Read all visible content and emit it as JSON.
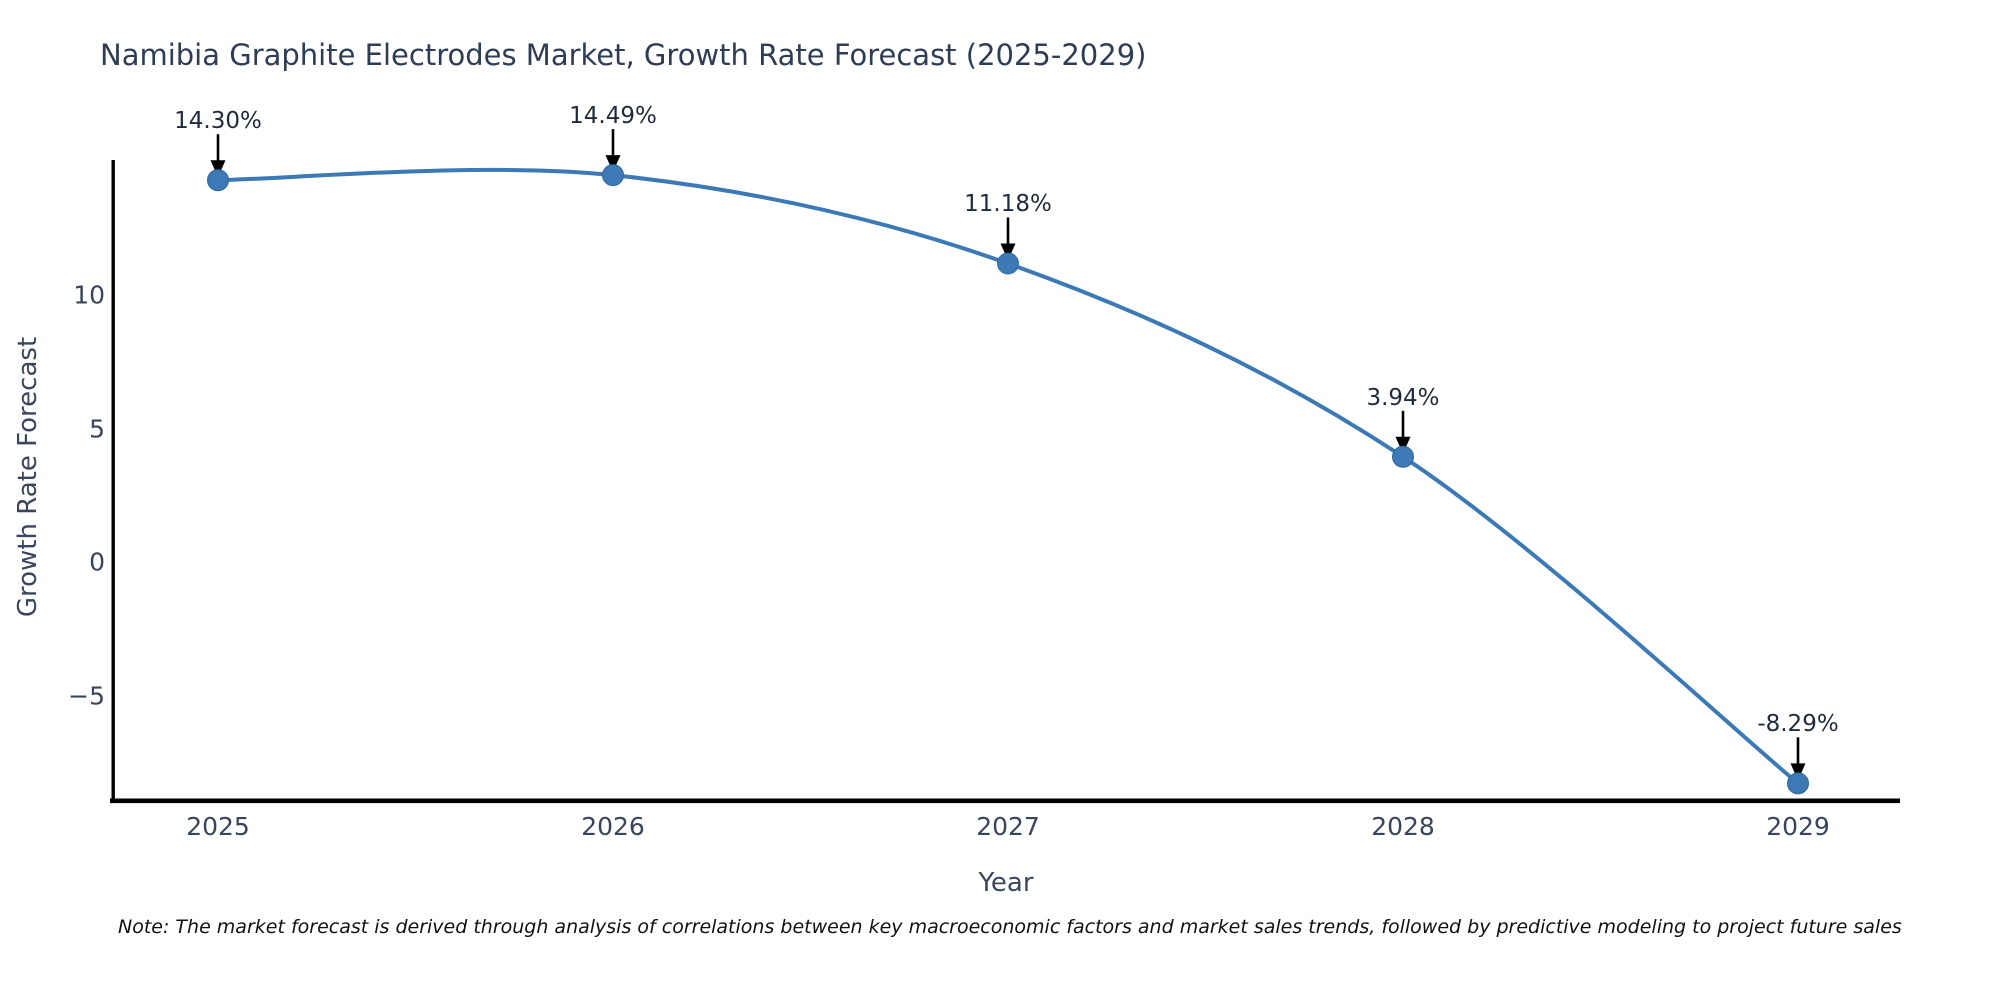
{
  "figure": {
    "title": "Namibia Graphite Electrodes Market, Growth Rate Forecast (2025-2029)",
    "note": "Note: The market forecast is derived through analysis of correlations between key macroeconomic factors and market sales trends, followed by predictive modeling to project future sales",
    "colors": {
      "line": "#3c79b5",
      "marker_fill": "#3c79b5",
      "marker_edge": "#2f67a0",
      "axis": "#000000",
      "arrow": "#000000",
      "title_text": "#2e3c55",
      "tick_text": "#39455a"
    }
  },
  "chart_data": {
    "type": "line",
    "line_shape": "spline",
    "markers": true,
    "grid": false,
    "legend": null,
    "title": "Namibia Graphite Electrodes Market, Growth Rate Forecast (2025-2029)",
    "xlabel": "Year",
    "ylabel": "Growth Rate Forecast",
    "x": [
      2025,
      2026,
      2027,
      2028,
      2029
    ],
    "values": [
      14.3,
      14.49,
      11.18,
      3.94,
      -8.29
    ],
    "point_labels": [
      "14.30%",
      "14.49%",
      "11.18%",
      "3.94%",
      "-8.29%"
    ],
    "xtick_labels": [
      "2025",
      "2026",
      "2027",
      "2028",
      "2029"
    ],
    "ytick_values": [
      10,
      5,
      0,
      -5
    ],
    "ytick_labels": [
      "10",
      "5",
      "0",
      "−5"
    ],
    "ylim": [
      -8.9,
      15.1
    ],
    "annotations_arrows": true
  }
}
